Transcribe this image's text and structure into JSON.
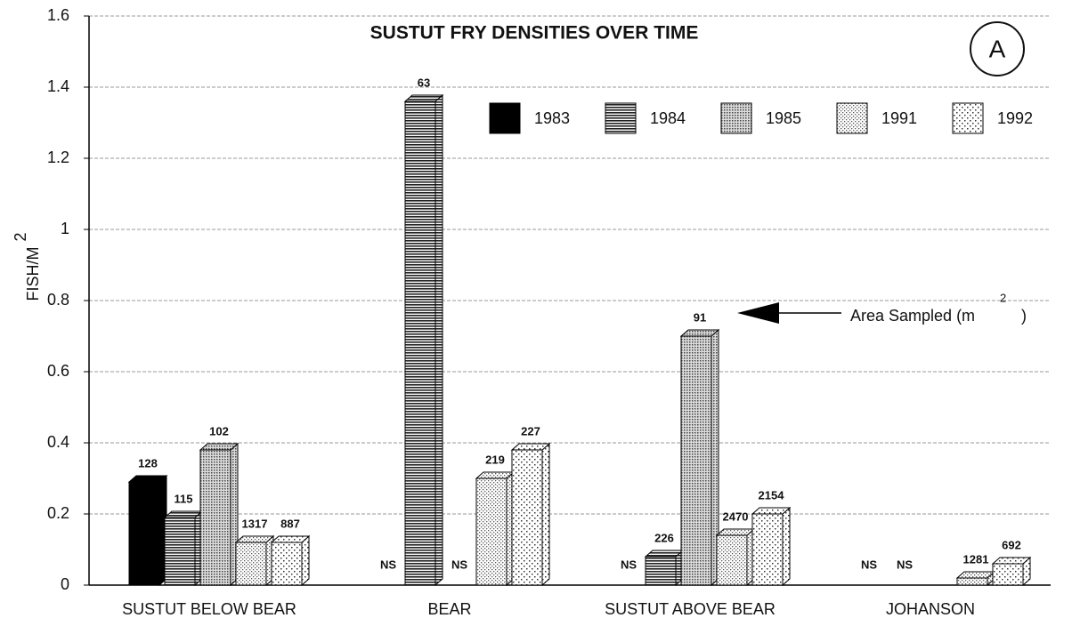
{
  "chart_data": {
    "type": "bar3d",
    "title": "SUSTUT FRY DENSITIES OVER TIME",
    "panel_label": "A",
    "y_label": "FISH/M",
    "y_label_sup": "2",
    "categories": [
      "SUSTUT BELOW BEAR",
      "BEAR",
      "SUSTUT ABOVE BEAR",
      "JOHANSON"
    ],
    "series": [
      {
        "name": "1983",
        "pattern": "solid",
        "color": "#000000",
        "values": [
          0.29,
          null,
          null,
          null
        ],
        "area_sampled": [
          128,
          "NS",
          "NS",
          "NS"
        ]
      },
      {
        "name": "1984",
        "pattern": "hlines",
        "color": "#333333",
        "values": [
          0.19,
          1.36,
          0.08,
          null
        ],
        "area_sampled": [
          115,
          63,
          226,
          "NS"
        ]
      },
      {
        "name": "1985",
        "pattern": "densedots",
        "color": "#555555",
        "values": [
          0.38,
          null,
          0.7,
          null
        ],
        "area_sampled": [
          102,
          "NS",
          91,
          null
        ]
      },
      {
        "name": "1991",
        "pattern": "finedots",
        "color": "#666666",
        "values": [
          0.12,
          0.3,
          0.14,
          0.02
        ],
        "area_sampled": [
          1317,
          219,
          2470,
          1281
        ]
      },
      {
        "name": "1992",
        "pattern": "sparsedots",
        "color": "#444444",
        "values": [
          0.12,
          0.38,
          0.2,
          0.06
        ],
        "area_sampled": [
          887,
          227,
          2154,
          692
        ]
      }
    ],
    "annotation": {
      "text": "Area Sampled (m",
      "sup": "2",
      "close": ")"
    },
    "ylim": [
      0,
      1.6
    ],
    "yticks": [
      0,
      0.2,
      0.4,
      0.6,
      0.8,
      1,
      1.2,
      1.4,
      1.6
    ],
    "grid": true,
    "legend": "top-right"
  }
}
